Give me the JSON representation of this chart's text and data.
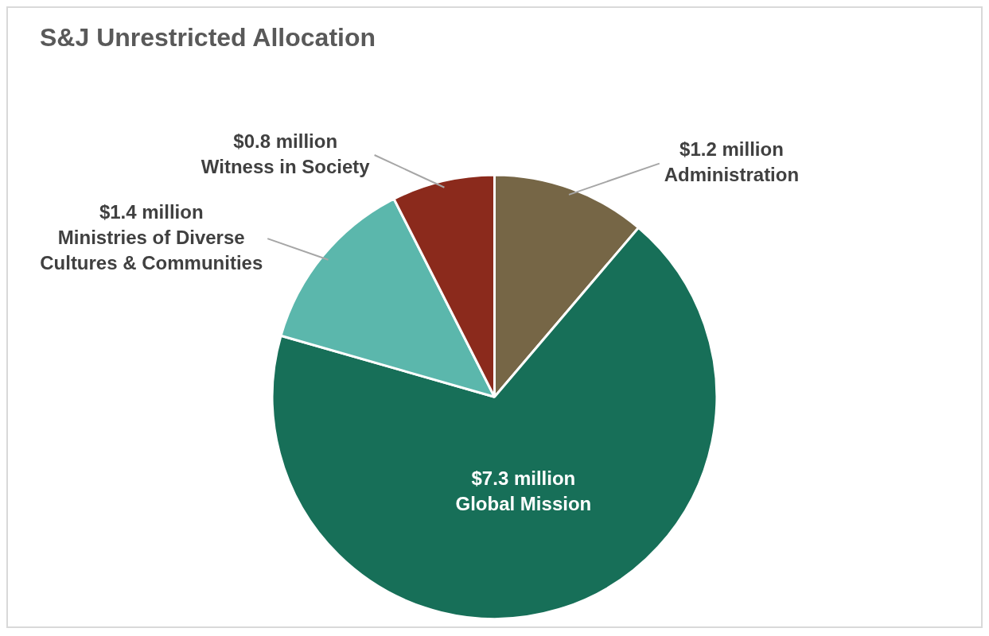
{
  "chart_data": {
    "type": "pie",
    "title": "S&J Unrestricted Allocation",
    "categories": [
      "Administration",
      "Global Mission",
      "Ministries of Diverse Cultures & Communities",
      "Witness in Society"
    ],
    "values": [
      1.2,
      7.3,
      1.4,
      0.8
    ],
    "value_labels": [
      "$1.2 million",
      "$7.3 million",
      "$1.4 million",
      "$0.8 million"
    ],
    "colors": [
      "#766646",
      "#176f58",
      "#5bb7ac",
      "#8b2a1c"
    ],
    "legend": false
  }
}
